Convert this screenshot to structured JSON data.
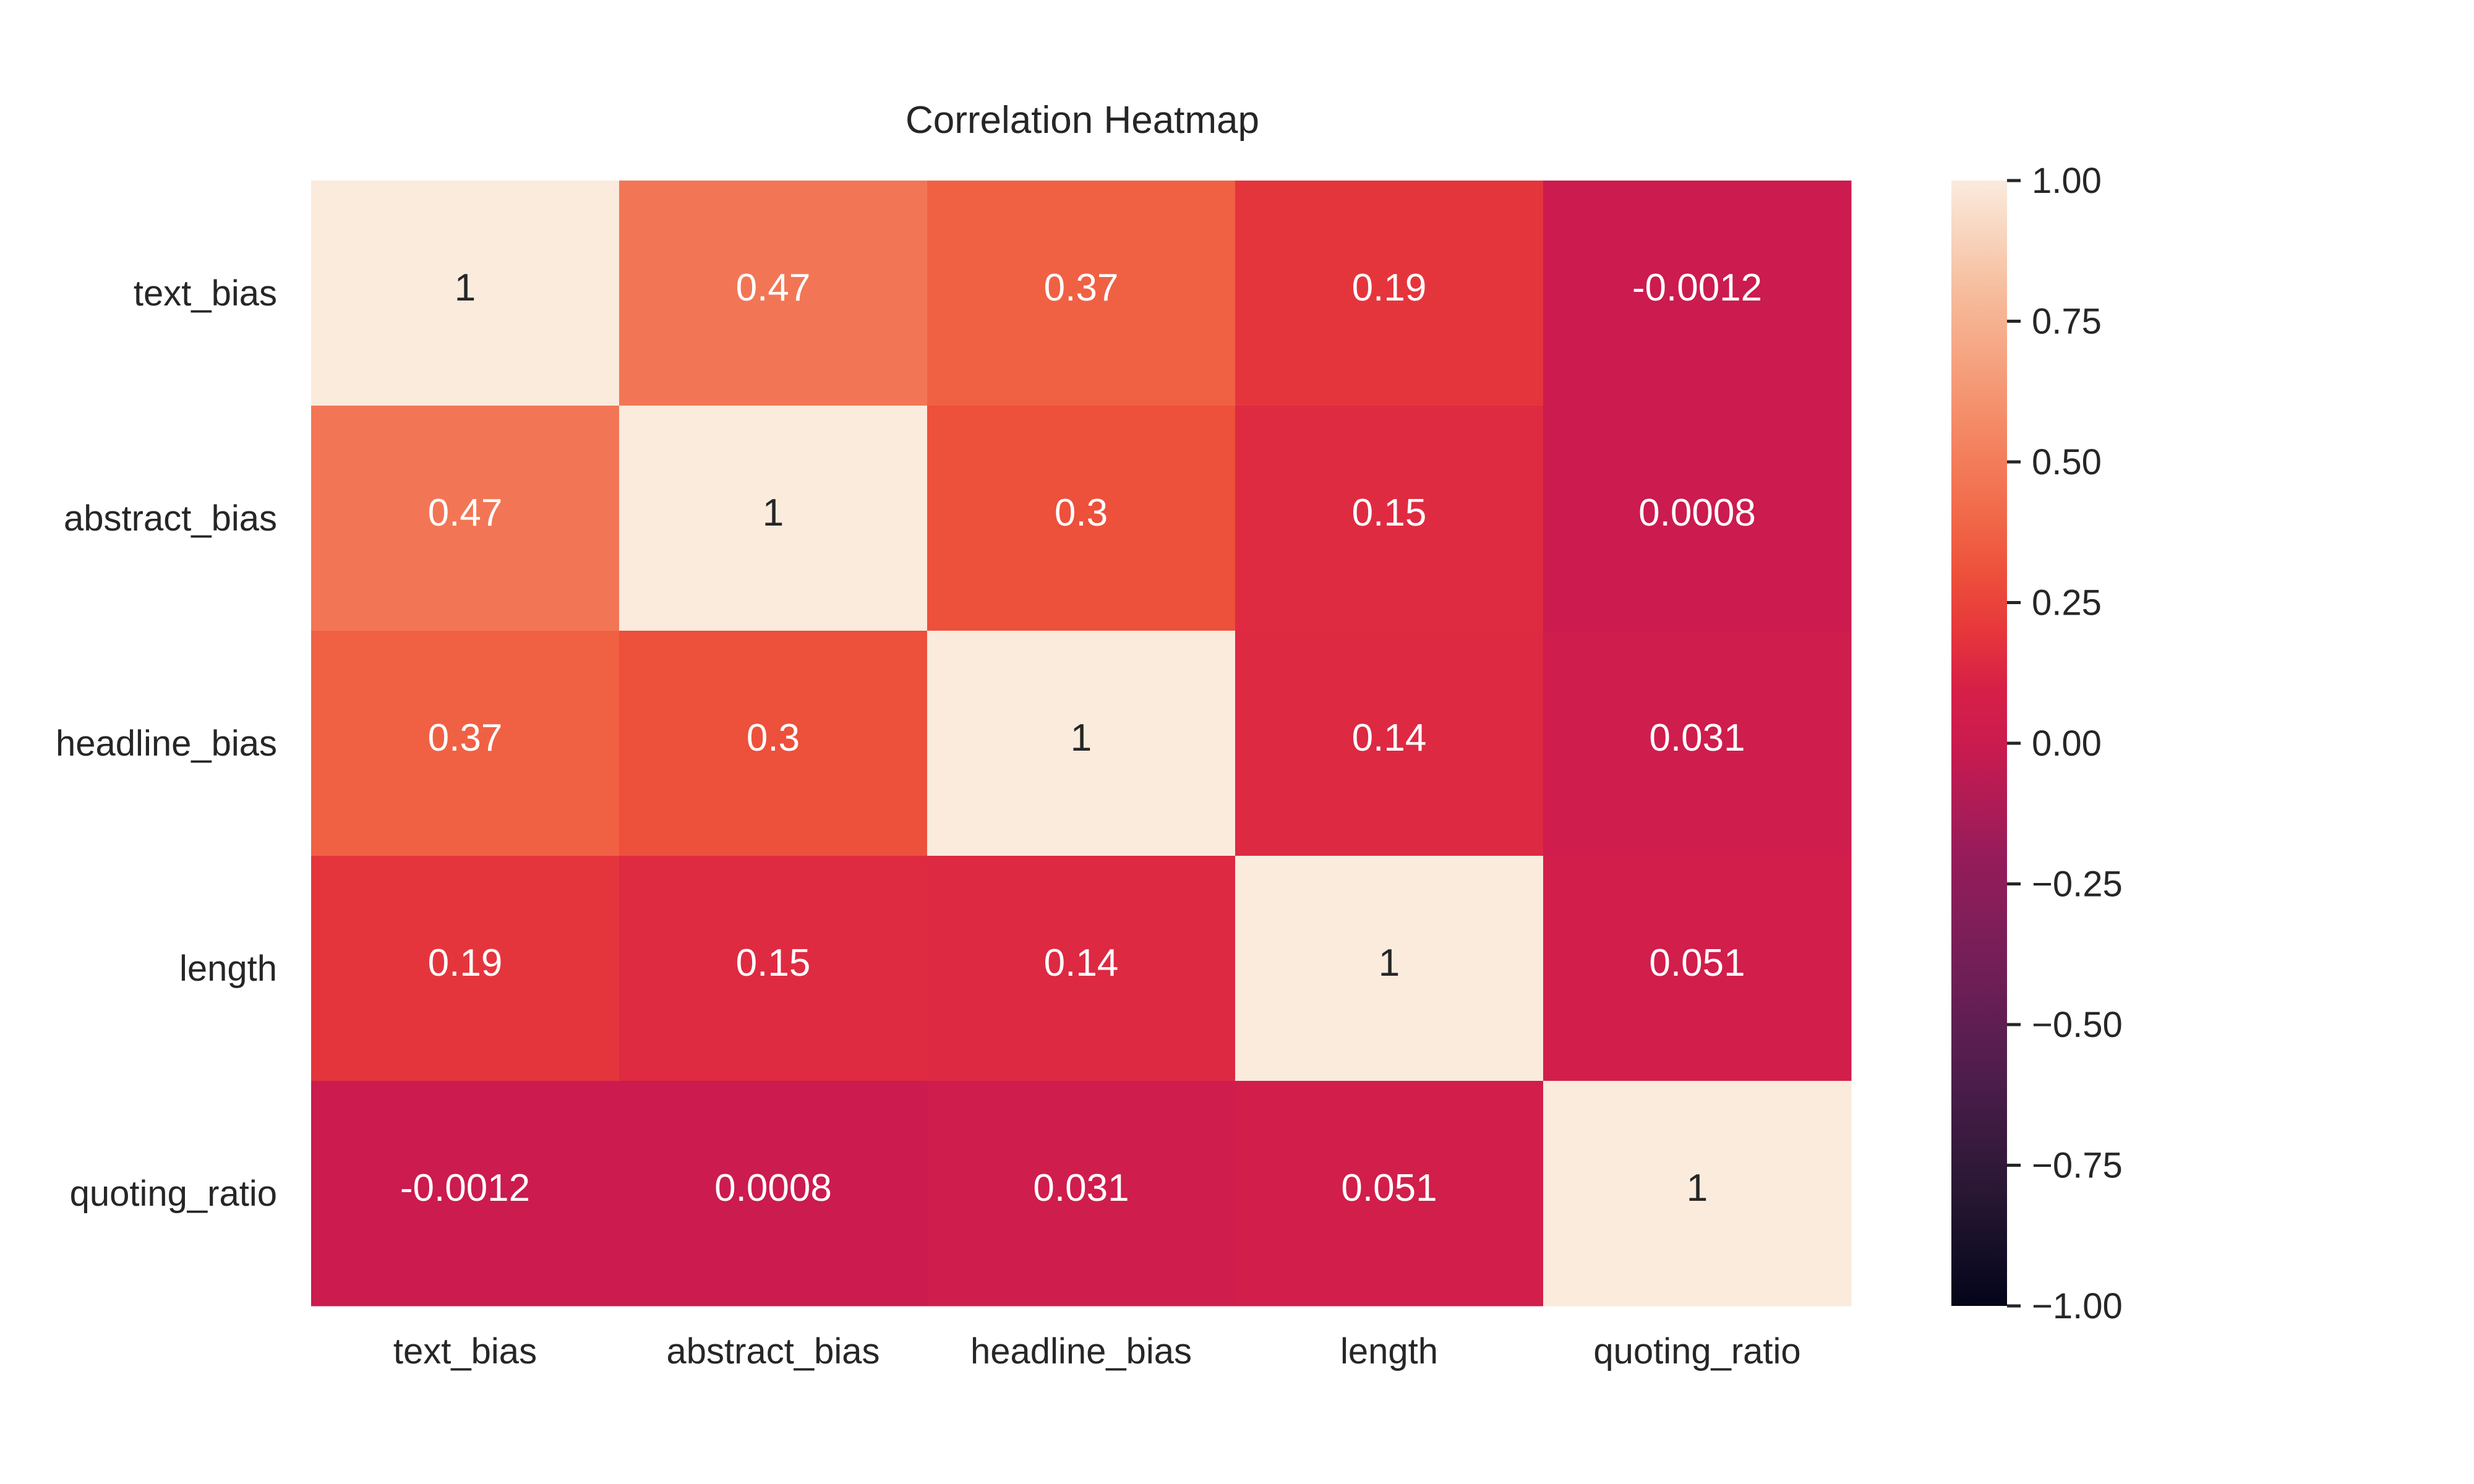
{
  "chart_data": {
    "type": "heatmap",
    "title": "Correlation Heatmap",
    "rows": [
      "text_bias",
      "abstract_bias",
      "headline_bias",
      "length",
      "quoting_ratio"
    ],
    "columns": [
      "text_bias",
      "abstract_bias",
      "headline_bias",
      "length",
      "quoting_ratio"
    ],
    "values": [
      [
        1,
        0.47,
        0.37,
        0.19,
        -0.0012
      ],
      [
        0.47,
        1,
        0.3,
        0.15,
        0.0008
      ],
      [
        0.37,
        0.3,
        1,
        0.14,
        0.031
      ],
      [
        0.19,
        0.15,
        0.14,
        1,
        0.051
      ],
      [
        -0.0012,
        0.0008,
        0.031,
        0.051,
        1
      ]
    ],
    "value_labels": [
      [
        "1",
        "0.47",
        "0.37",
        "0.19",
        "-0.0012"
      ],
      [
        "0.47",
        "1",
        "0.3",
        "0.15",
        "0.0008"
      ],
      [
        "0.37",
        "0.3",
        "1",
        "0.14",
        "0.031"
      ],
      [
        "0.19",
        "0.15",
        "0.14",
        "1",
        "0.051"
      ],
      [
        "-0.0012",
        "0.0008",
        "0.031",
        "0.051",
        "1"
      ]
    ],
    "colorbar": {
      "range": [
        -1,
        1
      ],
      "ticks": [
        1,
        0.75,
        0.5,
        0.25,
        0,
        -0.25,
        -0.5,
        -0.75,
        -1
      ],
      "tick_labels": [
        "1.00",
        "0.75",
        "0.50",
        "0.25",
        "0.00",
        "−0.25",
        "−0.50",
        "−0.75",
        "−1.00"
      ]
    },
    "colormap": "rocket"
  }
}
